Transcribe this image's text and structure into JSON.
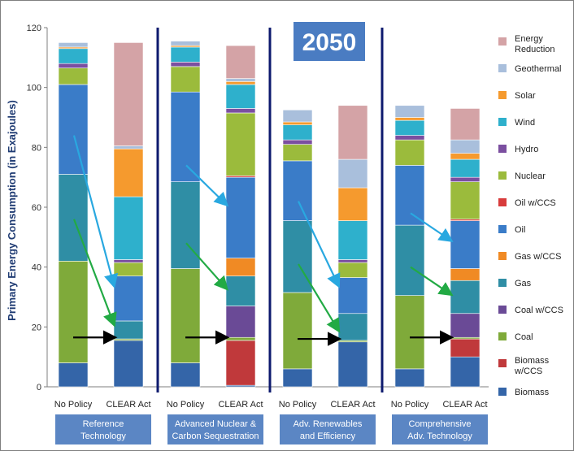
{
  "chart_data": {
    "type": "bar",
    "stacked": true,
    "ylabel": "Primary Energy Consumption (in Exajoules)",
    "ylim": [
      0,
      120
    ],
    "yticks": [
      0,
      20,
      40,
      60,
      80,
      100,
      120
    ],
    "grid": false,
    "legend_position": "right",
    "annotation": "2050",
    "bar_labels": [
      "No Policy",
      "CLEAR Act"
    ],
    "groups": [
      {
        "label_line1": "Reference",
        "label_line2": "Technology"
      },
      {
        "label_line1": "Advanced Nuclear &",
        "label_line2": "Carbon Sequestration"
      },
      {
        "label_line1": "Adv. Renewables",
        "label_line2": "and Efficiency"
      },
      {
        "label_line1": "Comprehensive",
        "label_line2": "Adv. Technology"
      }
    ],
    "series": [
      {
        "name": "Biomass",
        "color": "#3465a8",
        "values": [
          [
            8,
            15.5
          ],
          [
            8,
            0.5
          ],
          [
            6,
            15
          ],
          [
            6,
            10
          ]
        ]
      },
      {
        "name": "Biomass w/CCS",
        "color": "#c0393b",
        "values": [
          [
            0,
            0
          ],
          [
            0,
            15
          ],
          [
            0,
            0
          ],
          [
            0,
            6
          ]
        ]
      },
      {
        "name": "Coal",
        "color": "#7faa3a",
        "values": [
          [
            34,
            0.5
          ],
          [
            31.5,
            1
          ],
          [
            25.5,
            0.5
          ],
          [
            24.5,
            0.5
          ]
        ]
      },
      {
        "name": "Coal w/CCS",
        "color": "#6a4a96",
        "values": [
          [
            0,
            0
          ],
          [
            0,
            10.5
          ],
          [
            0,
            0
          ],
          [
            0,
            8
          ]
        ]
      },
      {
        "name": "Gas",
        "color": "#2f8ea5",
        "values": [
          [
            29,
            6
          ],
          [
            29,
            10
          ],
          [
            24,
            9
          ],
          [
            23.5,
            11
          ]
        ]
      },
      {
        "name": "Gas w/CCS",
        "color": "#f08a24",
        "values": [
          [
            0,
            0
          ],
          [
            0,
            6
          ],
          [
            0,
            0
          ],
          [
            0,
            4
          ]
        ]
      },
      {
        "name": "Oil",
        "color": "#3a7cc8",
        "values": [
          [
            30,
            15
          ],
          [
            30,
            27
          ],
          [
            20,
            12
          ],
          [
            20,
            16
          ]
        ]
      },
      {
        "name": "Oil w/CCS",
        "color": "#d83c3c",
        "values": [
          [
            0,
            0
          ],
          [
            0,
            0.5
          ],
          [
            0,
            0
          ],
          [
            0,
            0.5
          ]
        ]
      },
      {
        "name": "Nuclear",
        "color": "#9bbb3c",
        "values": [
          [
            5.5,
            4.5
          ],
          [
            8.5,
            21
          ],
          [
            5.5,
            5
          ],
          [
            8.5,
            12.5
          ]
        ]
      },
      {
        "name": "Hydro",
        "color": "#7b4fa0",
        "values": [
          [
            1.5,
            1
          ],
          [
            1.5,
            1.5
          ],
          [
            1.5,
            1
          ],
          [
            1.5,
            1.5
          ]
        ]
      },
      {
        "name": "Wind",
        "color": "#2eb0cc",
        "values": [
          [
            5,
            21
          ],
          [
            5,
            8
          ],
          [
            5,
            13
          ],
          [
            5,
            6
          ]
        ]
      },
      {
        "name": "Solar",
        "color": "#f59a2e",
        "values": [
          [
            0.5,
            16
          ],
          [
            0.5,
            1
          ],
          [
            1,
            11
          ],
          [
            1,
            2
          ]
        ]
      },
      {
        "name": "Geothermal",
        "color": "#a9bfdc",
        "values": [
          [
            1.5,
            1
          ],
          [
            1.5,
            1
          ],
          [
            4,
            9.5
          ],
          [
            4,
            4.5
          ]
        ]
      },
      {
        "name": "Energy Reduction",
        "color": "#d4a3a6",
        "values": [
          [
            0,
            34.5
          ],
          [
            0,
            11
          ],
          [
            0,
            18
          ],
          [
            0,
            10.5
          ]
        ]
      }
    ],
    "legend": [
      {
        "line1": "Energy",
        "line2": "Reduction",
        "color": "#d4a3a6"
      },
      {
        "line1": "Geothermal",
        "line2": "",
        "color": "#a9bfdc"
      },
      {
        "line1": "Solar",
        "line2": "",
        "color": "#f59a2e"
      },
      {
        "line1": "Wind",
        "line2": "",
        "color": "#2eb0cc"
      },
      {
        "line1": "Hydro",
        "line2": "",
        "color": "#7b4fa0"
      },
      {
        "line1": "Nuclear",
        "line2": "",
        "color": "#9bbb3c"
      },
      {
        "line1": "Oil w/CCS",
        "line2": "",
        "color": "#d83c3c"
      },
      {
        "line1": "Oil",
        "line2": "",
        "color": "#3a7cc8"
      },
      {
        "line1": "Gas w/CCS",
        "line2": "",
        "color": "#f08a24"
      },
      {
        "line1": "Gas",
        "line2": "",
        "color": "#2f8ea5"
      },
      {
        "line1": "Coal w/CCS",
        "line2": "",
        "color": "#6a4a96"
      },
      {
        "line1": "Coal",
        "line2": "",
        "color": "#7faa3a"
      },
      {
        "line1": "Biomass",
        "line2": "w/CCS",
        "color": "#c0393b"
      },
      {
        "line1": "Biomass",
        "line2": "",
        "color": "#3465a8"
      }
    ],
    "arrows": [
      {
        "color": "#29a8e0",
        "group": 0,
        "from": 84,
        "to": 34
      },
      {
        "color": "#22aa44",
        "group": 0,
        "from": 56,
        "to": 21
      },
      {
        "color": "#000000",
        "group": 0,
        "from": 16.5,
        "to": 16.5
      },
      {
        "color": "#29a8e0",
        "group": 1,
        "from": 74,
        "to": 61
      },
      {
        "color": "#22aa44",
        "group": 1,
        "from": 48,
        "to": 33
      },
      {
        "color": "#000000",
        "group": 1,
        "from": 16.5,
        "to": 16.5
      },
      {
        "color": "#29a8e0",
        "group": 2,
        "from": 62,
        "to": 34
      },
      {
        "color": "#22aa44",
        "group": 2,
        "from": 41,
        "to": 19
      },
      {
        "color": "#000000",
        "group": 2,
        "from": 16,
        "to": 16
      },
      {
        "color": "#29a8e0",
        "group": 3,
        "from": 58,
        "to": 49
      },
      {
        "color": "#22aa44",
        "group": 3,
        "from": 40,
        "to": 31
      },
      {
        "color": "#000000",
        "group": 3,
        "from": 16.5,
        "to": 16.5
      }
    ],
    "colors": {
      "divider": "#0d1a6e",
      "group_box": "#5b86c4",
      "year_box": "#4a7cc2",
      "axis": "#7f7f7f"
    }
  }
}
